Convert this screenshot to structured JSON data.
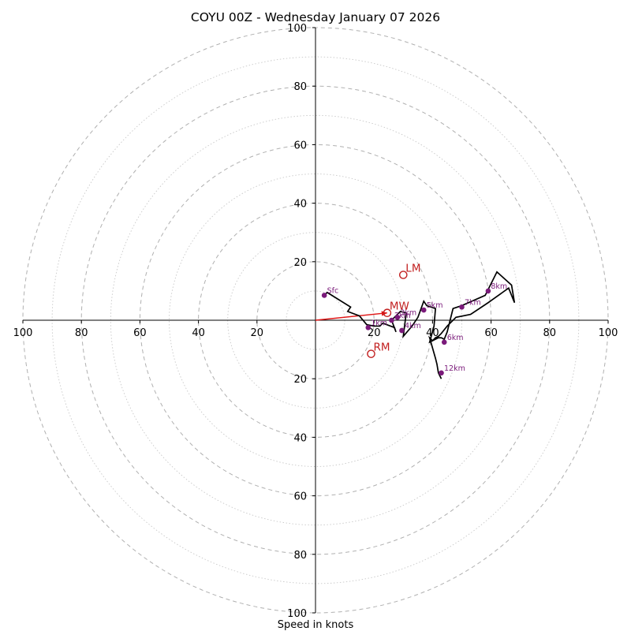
{
  "chart_data": {
    "type": "hodograph",
    "title": "COYU 00Z - Wednesday January 07 2026",
    "xlabel": "Speed in knots",
    "rings": [
      20,
      40,
      60,
      80,
      100
    ],
    "minor_rings": [
      10,
      30,
      50,
      70,
      90
    ],
    "range": [
      -100,
      100
    ],
    "x_tick_labels": [
      "100",
      "80",
      "60",
      "40",
      "20",
      "20",
      "40",
      "60",
      "80",
      "100"
    ],
    "y_tick_labels": [
      "100",
      "80",
      "60",
      "40",
      "20",
      "20",
      "40",
      "60",
      "80",
      "100"
    ],
    "units": "knots",
    "hodograph_line": {
      "u": [
        3,
        4,
        12,
        11,
        15,
        17.5,
        20,
        22,
        23,
        27,
        27.5,
        26,
        28,
        29,
        31,
        30,
        33,
        35,
        37,
        38,
        41,
        40.5,
        39,
        42,
        43,
        44,
        45,
        46,
        47,
        50,
        58,
        62,
        67,
        68,
        66,
        59,
        53,
        48,
        45,
        43,
        42,
        41,
        40,
        39,
        41,
        41.5,
        42,
        43
      ],
      "v": [
        8.5,
        9.5,
        4.5,
        3,
        1.5,
        -1.5,
        -2,
        -2,
        -1,
        -2.5,
        -4,
        0,
        2,
        3,
        2.5,
        -5.5,
        -2,
        1,
        6.5,
        5,
        4,
        -2,
        -7.5,
        -6,
        -6,
        -6.5,
        -4,
        0,
        4,
        5,
        8.5,
        16.5,
        12,
        6,
        11,
        6,
        2,
        1,
        -2,
        -4.5,
        -5.5,
        -6,
        -7,
        -6,
        -13,
        -15,
        -18,
        -20
      ]
    },
    "height_markers": [
      {
        "label": "Sfc",
        "u": 3,
        "v": 8.5
      },
      {
        "label": "1km",
        "u": 18,
        "v": -2.5
      },
      {
        "label": "2km",
        "u": 26,
        "v": 0
      },
      {
        "label": "3km",
        "u": 28,
        "v": 1
      },
      {
        "label": "4km",
        "u": 29.5,
        "v": -3.5
      },
      {
        "label": "5km",
        "u": 37,
        "v": 3.5
      },
      {
        "label": "6km",
        "u": 44,
        "v": -7.5
      },
      {
        "label": "7km",
        "u": 50,
        "v": 4.5
      },
      {
        "label": "8km",
        "u": 59,
        "v": 10
      },
      {
        "label": "12km",
        "u": 43,
        "v": -18
      }
    ],
    "storm_motions": [
      {
        "label": "LM",
        "u": 30,
        "v": 15.5
      },
      {
        "label": "RM",
        "u": 19,
        "v": -11.5
      },
      {
        "label": "MW",
        "u": 24.5,
        "v": 2.5
      }
    ],
    "storm_vector": {
      "from_u": 0,
      "from_v": 0,
      "to_u": 24.5,
      "to_v": 2.5
    },
    "colors": {
      "hodograph": "#000000",
      "height_markers": "#7a1a7a",
      "storm_motion": "#c22020",
      "rings": "#b0b0b0"
    }
  }
}
